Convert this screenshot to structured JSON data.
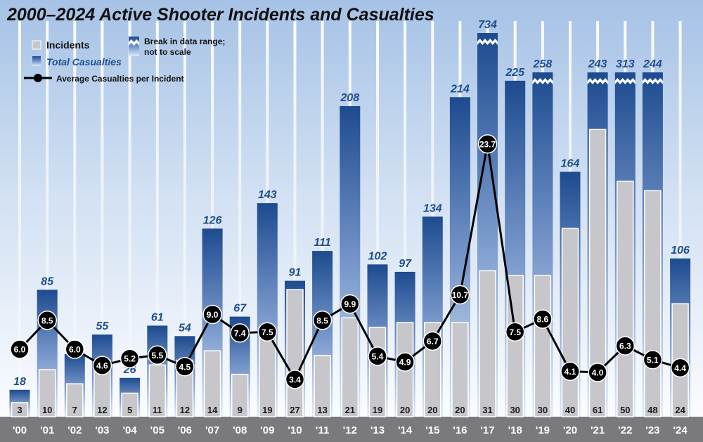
{
  "chart_data": {
    "type": "bar",
    "title": "2000–2024 Active Shooter Incidents and Casualties",
    "categories": [
      "'00",
      "'01",
      "'02",
      "'03",
      "'04",
      "'05",
      "'06",
      "'07",
      "'08",
      "'09",
      "'10",
      "'11",
      "'12",
      "'13",
      "'14",
      "'15",
      "'16",
      "'17",
      "'18",
      "'19",
      "'20",
      "'21",
      "'22",
      "'23",
      "'24"
    ],
    "series": [
      {
        "name": "Incidents",
        "values": [
          3,
          10,
          7,
          12,
          5,
          11,
          12,
          14,
          9,
          19,
          27,
          13,
          21,
          19,
          20,
          20,
          20,
          31,
          30,
          30,
          40,
          61,
          50,
          48,
          24
        ]
      },
      {
        "name": "Total Casualties",
        "values": [
          18,
          85,
          42,
          55,
          26,
          61,
          54,
          126,
          67,
          143,
          91,
          111,
          208,
          102,
          97,
          134,
          214,
          734,
          225,
          258,
          164,
          243,
          313,
          244,
          106
        ]
      },
      {
        "name": "Average Casualties per Incident",
        "values": [
          "6.0",
          "8.5",
          "6.0",
          "4.6",
          "5.2",
          "5.5",
          "4.5",
          "9.0",
          "7.4",
          "7.5",
          "3.4",
          "8.5",
          "9.9",
          "5.4",
          "4.9",
          "6.7",
          "10.7",
          "23.7",
          "7.5",
          "8.6",
          "4.1",
          "4.0",
          "6.3",
          "5.1",
          "4.4"
        ]
      }
    ],
    "broken_bars": [
      "'17",
      "'19",
      "'21",
      "'22",
      "'23"
    ],
    "legend": {
      "incidents": "Incidents",
      "casualties": "Total Casualties",
      "break": "Break in data range;",
      "break2": "not to scale",
      "average": "Average Casualties per Incident",
      "placement": "top-left"
    },
    "colors": {
      "casualty_dark": "#1d4b8f",
      "casualty_light": "#dfe9f6",
      "incident_fill": "#c7c7cb",
      "label_blue": "#1f4e8c",
      "axis_band": "#7a7a7e",
      "background_top": "#a9c4e6",
      "line": "#000000"
    }
  }
}
